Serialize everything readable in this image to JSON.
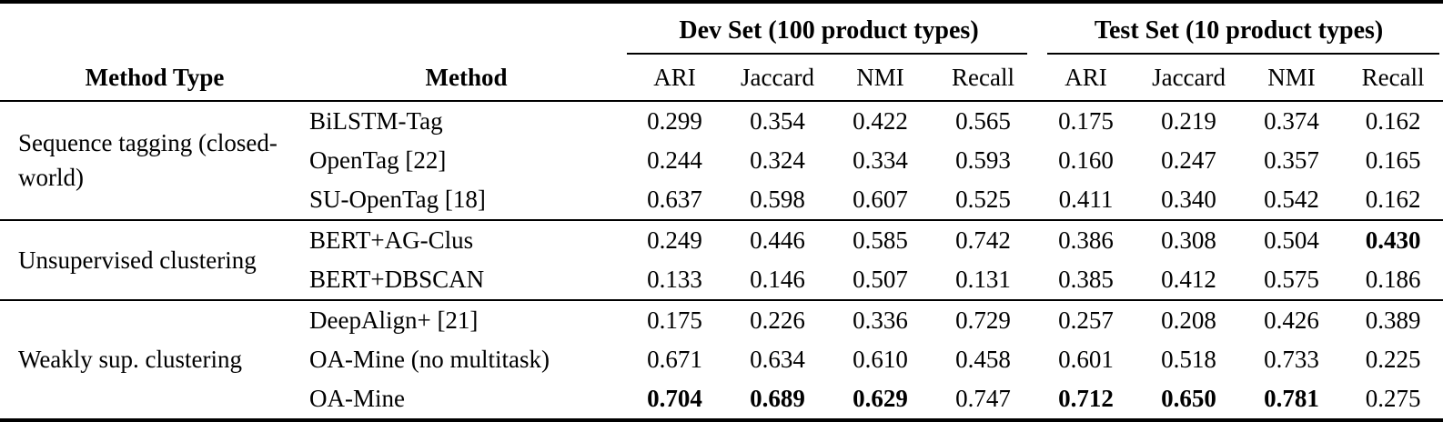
{
  "table": {
    "spanners": [
      {
        "label": "Dev Set (100 product types)"
      },
      {
        "label": "Test Set (10 product types)"
      }
    ],
    "columns": {
      "method_type": "Method Type",
      "method": "Method",
      "metrics": [
        "ARI",
        "Jaccard",
        "NMI",
        "Recall"
      ]
    },
    "groups": [
      {
        "method_type": "Sequence tagging (closed-world)",
        "rows": [
          {
            "method": "BiLSTM-Tag",
            "dev": [
              "0.299",
              "0.354",
              "0.422",
              "0.565"
            ],
            "test": [
              "0.175",
              "0.219",
              "0.374",
              "0.162"
            ],
            "dev_bold": [],
            "test_bold": []
          },
          {
            "method": "OpenTag [22]",
            "dev": [
              "0.244",
              "0.324",
              "0.334",
              "0.593"
            ],
            "test": [
              "0.160",
              "0.247",
              "0.357",
              "0.165"
            ],
            "dev_bold": [],
            "test_bold": []
          },
          {
            "method": "SU-OpenTag [18]",
            "dev": [
              "0.637",
              "0.598",
              "0.607",
              "0.525"
            ],
            "test": [
              "0.411",
              "0.340",
              "0.542",
              "0.162"
            ],
            "dev_bold": [],
            "test_bold": []
          }
        ]
      },
      {
        "method_type": "Unsupervised clustering",
        "rows": [
          {
            "method": "BERT+AG-Clus",
            "dev": [
              "0.249",
              "0.446",
              "0.585",
              "0.742"
            ],
            "test": [
              "0.386",
              "0.308",
              "0.504",
              "0.430"
            ],
            "dev_bold": [],
            "test_bold": [
              3
            ]
          },
          {
            "method": "BERT+DBSCAN",
            "dev": [
              "0.133",
              "0.146",
              "0.507",
              "0.131"
            ],
            "test": [
              "0.385",
              "0.412",
              "0.575",
              "0.186"
            ],
            "dev_bold": [],
            "test_bold": []
          }
        ]
      },
      {
        "method_type": "Weakly sup. clustering",
        "rows": [
          {
            "method": "DeepAlign+ [21]",
            "dev": [
              "0.175",
              "0.226",
              "0.336",
              "0.729"
            ],
            "test": [
              "0.257",
              "0.208",
              "0.426",
              "0.389"
            ],
            "dev_bold": [],
            "test_bold": []
          },
          {
            "method": "OA-Mine (no multitask)",
            "dev": [
              "0.671",
              "0.634",
              "0.610",
              "0.458"
            ],
            "test": [
              "0.601",
              "0.518",
              "0.733",
              "0.225"
            ],
            "dev_bold": [],
            "test_bold": []
          },
          {
            "method": "OA-Mine",
            "dev": [
              "0.704",
              "0.689",
              "0.629",
              "0.747"
            ],
            "test": [
              "0.712",
              "0.650",
              "0.781",
              "0.275"
            ],
            "dev_bold": [
              0,
              1,
              2
            ],
            "test_bold": [
              0,
              1,
              2
            ]
          }
        ]
      }
    ],
    "styles": {
      "text_color": "#000000",
      "rule_color": "#000000",
      "background": "#ffffff"
    }
  }
}
